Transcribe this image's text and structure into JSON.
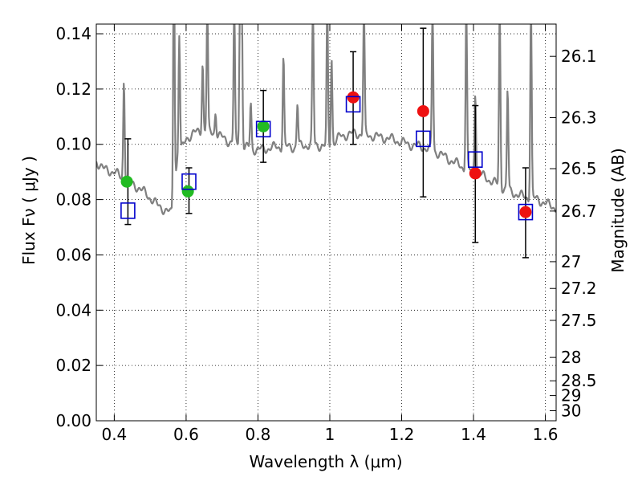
{
  "chart_data": {
    "type": "scatter",
    "xlabel": "Wavelength  λ (μm)",
    "ylabel": "Flux  Fν  ( μJy )",
    "y2label": "Magnitude (AB)",
    "xlim": [
      0.35,
      1.63
    ],
    "ylim": [
      0.0,
      0.1435
    ],
    "grid": true,
    "x_ticks": [
      0.4,
      0.6,
      0.8,
      1.0,
      1.2,
      1.4,
      1.6
    ],
    "x_tick_labels": [
      "0.4",
      "0.6",
      "0.8",
      "1",
      "1.2",
      "1.4",
      "1.6"
    ],
    "y_ticks": [
      0.0,
      0.02,
      0.04,
      0.06,
      0.08,
      0.1,
      0.12,
      0.14
    ],
    "y_tick_labels": [
      "0.00",
      "0.02",
      "0.04",
      "0.06",
      "0.08",
      "0.10",
      "0.12",
      "0.14"
    ],
    "y2_ticks": [
      {
        "label": "26.1",
        "value": 26.1
      },
      {
        "label": "26.3",
        "value": 26.3
      },
      {
        "label": "26.5",
        "value": 26.5
      },
      {
        "label": "26.7",
        "value": 26.7
      },
      {
        "label": "27",
        "value": 27.0
      },
      {
        "label": "27.2",
        "value": 27.2
      },
      {
        "label": "27.5",
        "value": 27.5
      },
      {
        "label": "28",
        "value": 28.0
      },
      {
        "label": "28.5",
        "value": 28.5
      },
      {
        "label": "29",
        "value": 29.0
      },
      {
        "label": "30",
        "value": 30.0
      }
    ],
    "series": [
      {
        "marker": "green-circle",
        "color": "#22bb22",
        "x": [
          0.435,
          0.605,
          0.815
        ],
        "y": [
          0.0865,
          0.083,
          0.1065
        ]
      },
      {
        "marker": "red-circle",
        "color": "#ee1111",
        "x": [
          1.065,
          1.26,
          1.405,
          1.545
        ],
        "y": [
          0.117,
          0.112,
          0.0895,
          0.0755
        ]
      },
      {
        "marker": "blue-open-square",
        "color": "#0000cc",
        "x": [
          0.438,
          0.608,
          0.815,
          1.065,
          1.26,
          1.405,
          1.545
        ],
        "y": [
          0.076,
          0.0865,
          0.1055,
          0.1145,
          0.102,
          0.0945,
          0.0755
        ],
        "yerr_low": [
          0.071,
          0.075,
          0.0935,
          0.1,
          0.081,
          0.0645,
          0.059
        ],
        "yerr_high": [
          0.102,
          0.0915,
          0.1195,
          0.1335,
          0.142,
          0.114,
          0.0915
        ]
      }
    ],
    "template_spectrum": {
      "color": "#808080",
      "continuum": [
        [
          0.35,
          0.094
        ],
        [
          0.37,
          0.091
        ],
        [
          0.4,
          0.09
        ],
        [
          0.43,
          0.087
        ],
        [
          0.46,
          0.085
        ],
        [
          0.49,
          0.082
        ],
        [
          0.52,
          0.078
        ],
        [
          0.545,
          0.076
        ],
        [
          0.56,
          0.075
        ],
        [
          0.575,
          0.094
        ],
        [
          0.6,
          0.102
        ],
        [
          0.62,
          0.104
        ],
        [
          0.65,
          0.105
        ],
        [
          0.68,
          0.104
        ],
        [
          0.72,
          0.101
        ],
        [
          0.76,
          0.099
        ],
        [
          0.8,
          0.098
        ],
        [
          0.85,
          0.099
        ],
        [
          0.9,
          0.099
        ],
        [
          0.95,
          0.1
        ],
        [
          1.0,
          0.099
        ],
        [
          1.03,
          0.103
        ],
        [
          1.07,
          0.104
        ],
        [
          1.12,
          0.103
        ],
        [
          1.17,
          0.102
        ],
        [
          1.22,
          0.1
        ],
        [
          1.26,
          0.099
        ],
        [
          1.3,
          0.097
        ],
        [
          1.34,
          0.094
        ],
        [
          1.38,
          0.091
        ],
        [
          1.42,
          0.089
        ],
        [
          1.46,
          0.086
        ],
        [
          1.5,
          0.083
        ],
        [
          1.54,
          0.081
        ],
        [
          1.58,
          0.08
        ],
        [
          1.61,
          0.078
        ],
        [
          1.63,
          0.077
        ]
      ],
      "lines": [
        [
          0.427,
          0.124
        ],
        [
          0.566,
          0.175
        ],
        [
          0.581,
          0.14
        ],
        [
          0.646,
          0.13
        ],
        [
          0.659,
          0.15
        ],
        [
          0.682,
          0.112
        ],
        [
          0.734,
          0.15
        ],
        [
          0.75,
          0.15
        ],
        [
          0.755,
          0.15
        ],
        [
          0.78,
          0.115
        ],
        [
          0.871,
          0.132
        ],
        [
          0.91,
          0.115
        ],
        [
          0.953,
          0.15
        ],
        [
          0.993,
          0.15
        ],
        [
          1.005,
          0.132
        ],
        [
          1.095,
          0.15
        ],
        [
          1.286,
          0.15
        ],
        [
          1.38,
          0.15
        ],
        [
          1.405,
          0.12
        ],
        [
          1.473,
          0.15
        ],
        [
          1.495,
          0.12
        ],
        [
          1.56,
          0.15
        ]
      ]
    }
  }
}
